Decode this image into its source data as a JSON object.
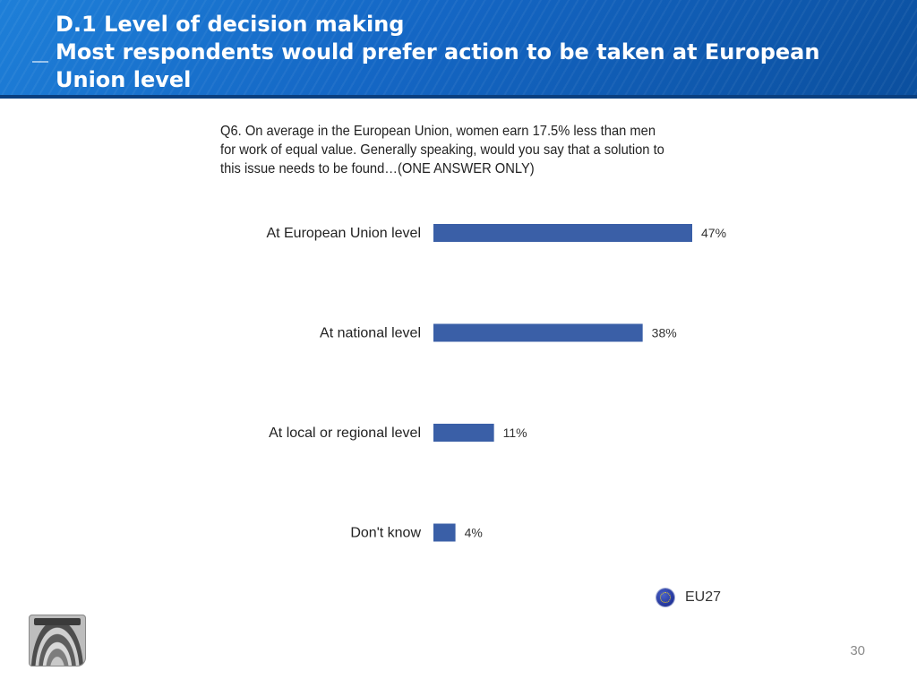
{
  "header": {
    "title_line1": "D.1 Level of decision making",
    "title_line2": "Most respondents would prefer action to be taken at European Union level"
  },
  "question": "Q6. On average in the European Union, women earn 17.5% less than men for work of equal value. Generally speaking, would you say that a solution to this issue needs to be found…(ONE ANSWER ONLY)",
  "chart_data": {
    "type": "bar",
    "orientation": "horizontal",
    "categories": [
      "At European Union level",
      "At national level",
      "At local or regional level",
      "Don't know"
    ],
    "values": [
      47,
      38,
      11,
      4
    ],
    "data_labels": [
      "47%",
      "38%",
      "11%",
      "4%"
    ],
    "unit": "%",
    "xlim": [
      0,
      47
    ],
    "grid": false,
    "legend": {
      "entries": [
        "EU27"
      ],
      "placement": "bottom-right"
    },
    "colors": {
      "bar": "#3a5fa7"
    }
  },
  "legend": {
    "label": "EU27",
    "icon": "eu-flag-icon"
  },
  "footer": {
    "page_number": "30"
  }
}
